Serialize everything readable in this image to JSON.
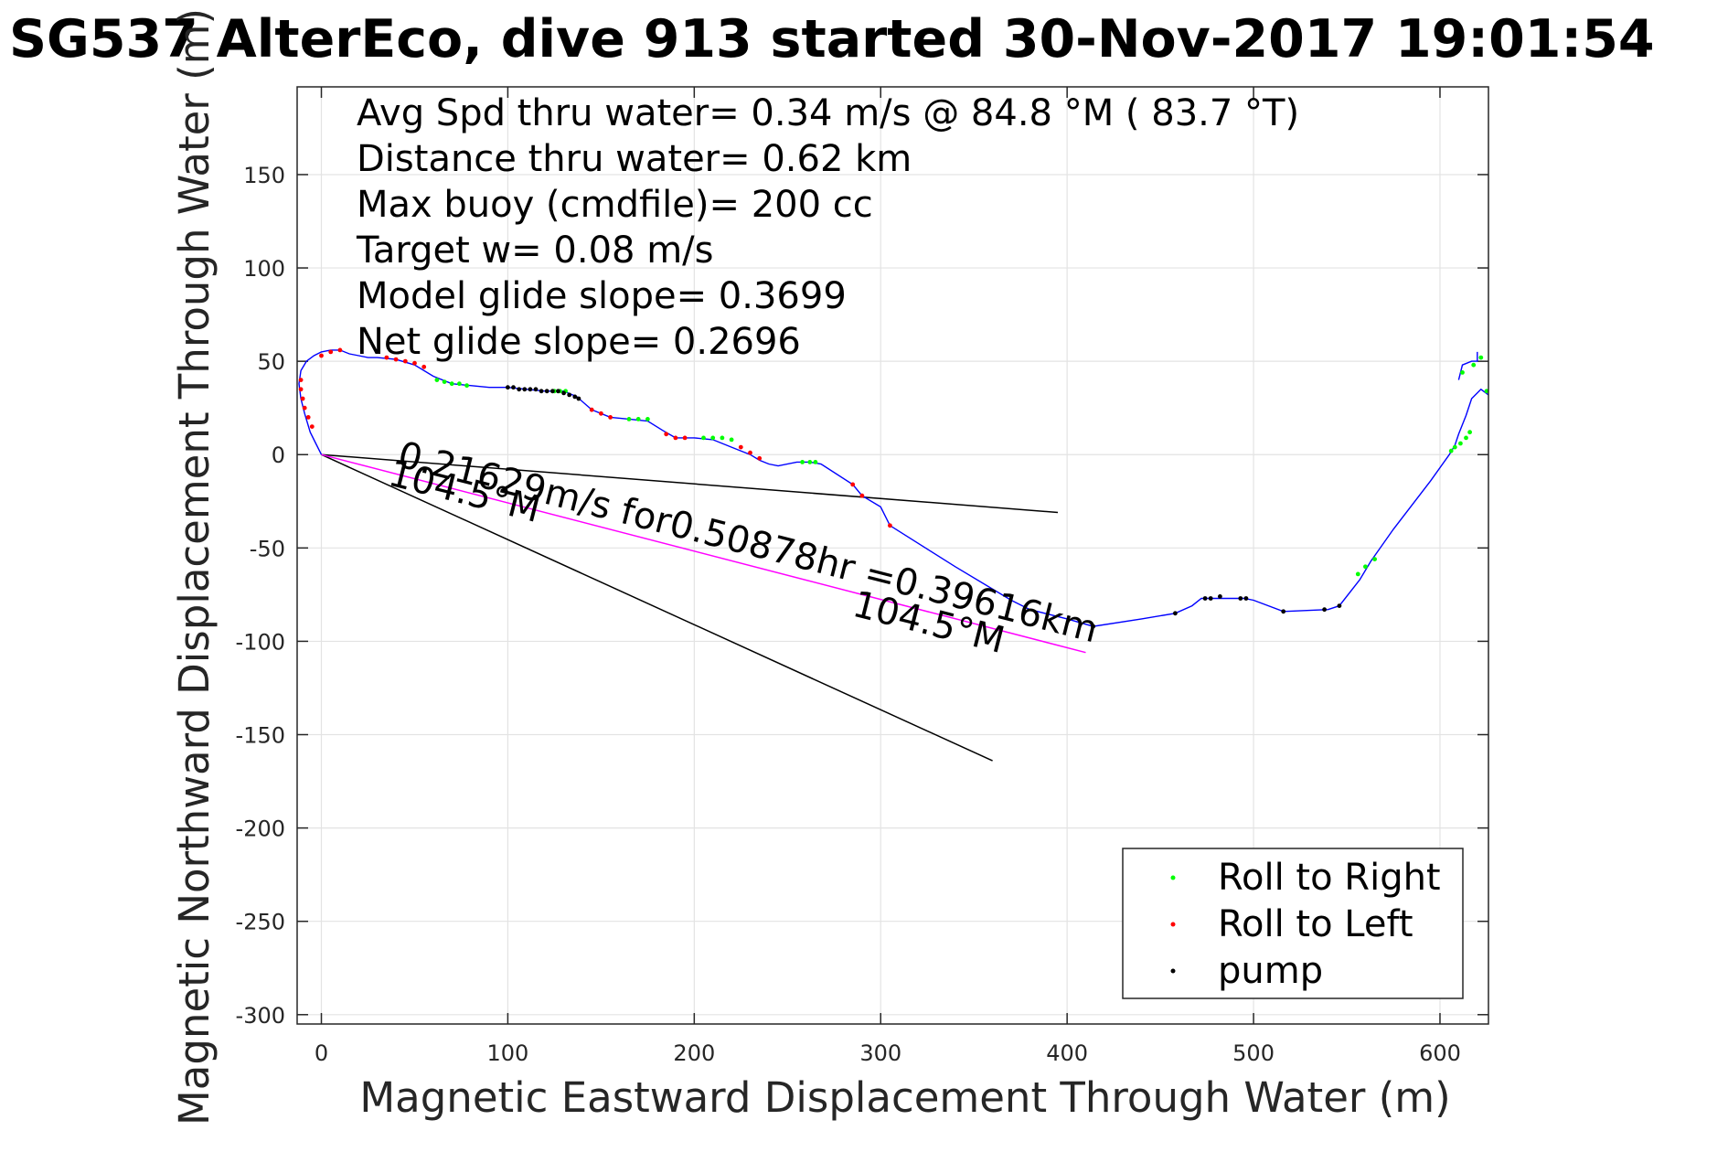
{
  "chart_data": {
    "type": "line",
    "title": "SG537 AlterEco, dive 913 started 30-Nov-2017 19:01:54",
    "xlabel": "Magnetic Eastward Displacement Through Water (m)",
    "ylabel": "Magnetic Northward Displacement Through Water (m)",
    "xlim": [
      -13,
      626
    ],
    "ylim": [
      -305,
      197
    ],
    "xticks": [
      0,
      100,
      200,
      300,
      400,
      500,
      600
    ],
    "yticks": [
      -300,
      -250,
      -200,
      -150,
      -100,
      -50,
      0,
      50,
      100,
      150
    ],
    "grid": true,
    "info_lines": [
      "Avg Spd thru water=  0.34 m/s @  84.8 °M ( 83.7 °T)",
      "Distance thru water=  0.62 km",
      "Max buoy (cmdfile)= 200 cc",
      "Target w= 0.08 m/s",
      "Model glide slope= 0.3699",
      "Net glide slope= 0.2696"
    ],
    "annotations": {
      "current_label": "0.21629m/s for0.50878hr =0.39616km",
      "heading_label_1": "104.5°M",
      "heading_label_2": "104.5°M"
    },
    "track": {
      "color": "#0000ff",
      "x": [
        0,
        -3,
        -6,
        -9,
        -11,
        -12,
        -11,
        -8,
        -4,
        0,
        5,
        10,
        15,
        20,
        25,
        30,
        40,
        50,
        60,
        70,
        80,
        90,
        100,
        110,
        120,
        130,
        137,
        145,
        155,
        165,
        175,
        183,
        190,
        200,
        210,
        220,
        230,
        235,
        240,
        245,
        255,
        262,
        268,
        285,
        290,
        300,
        305,
        340,
        370,
        380,
        400,
        414,
        440,
        458,
        467,
        472,
        476,
        482,
        495,
        500,
        516,
        540,
        546,
        557,
        563,
        575,
        595,
        605,
        608,
        610,
        614,
        617,
        622,
        626
      ],
      "y": [
        0,
        6,
        12,
        22,
        30,
        38,
        45,
        50,
        53,
        55,
        56,
        56,
        54,
        53,
        52,
        52,
        51,
        48,
        42,
        38,
        37,
        36,
        36,
        35,
        34,
        34,
        31,
        24,
        20,
        19,
        18,
        13,
        9,
        9,
        8,
        4,
        0,
        -3,
        -5,
        -6,
        -4,
        -4,
        -5,
        -16,
        -22,
        -28,
        -38,
        -60,
        -78,
        -83,
        -88,
        -92,
        -88,
        -85,
        -81,
        -77,
        -77,
        -77,
        -77,
        -78,
        -84,
        -83,
        -81,
        -67,
        -57,
        -40,
        -14,
        0,
        5,
        11,
        21,
        30,
        35,
        32
      ]
    },
    "track_segment_2": {
      "x": [
        610,
        612,
        617,
        620,
        620
      ],
      "y": [
        40,
        48,
        50,
        50,
        55
      ]
    },
    "current_line": {
      "color": "#ff00ff",
      "x": [
        0,
        410
      ],
      "y": [
        0,
        -106
      ]
    },
    "heading_line_1": {
      "color": "#000000",
      "x": [
        0,
        395
      ],
      "y": [
        0,
        -31
      ]
    },
    "heading_line_2": {
      "color": "#000000",
      "x": [
        0,
        360
      ],
      "y": [
        0,
        -164
      ]
    },
    "series": [
      {
        "name": "Roll to Right",
        "color": "#00ff00",
        "x": [
          62,
          66,
          70,
          74,
          78,
          125,
          128,
          131,
          165,
          170,
          175,
          205,
          210,
          215,
          220,
          258,
          262,
          265,
          556,
          560,
          565,
          606,
          608,
          611,
          614,
          616,
          612,
          618,
          622,
          625
        ],
        "y": [
          40,
          39,
          38,
          38,
          37,
          34,
          34,
          34,
          19,
          19,
          19,
          9,
          9,
          9,
          8,
          -4,
          -4,
          -4,
          -64,
          -60,
          -56,
          2,
          4,
          6,
          9,
          12,
          44,
          48,
          52,
          34
        ]
      },
      {
        "name": "Roll to Left",
        "color": "#ff0000",
        "x": [
          -11,
          -11,
          -10,
          -9,
          -7,
          -5,
          0,
          5,
          10,
          35,
          40,
          45,
          50,
          55,
          145,
          150,
          155,
          185,
          190,
          195,
          225,
          230,
          235,
          285,
          290,
          305
        ],
        "y": [
          40,
          35,
          30,
          25,
          20,
          15,
          53,
          55,
          56,
          52,
          51,
          50,
          49,
          47,
          24,
          22,
          20,
          11,
          9,
          9,
          4,
          1,
          -2,
          -16,
          -22,
          -38
        ]
      },
      {
        "name": "pump",
        "color": "#000000",
        "x": [
          100,
          103,
          106,
          109,
          112,
          115,
          118,
          121,
          124,
          127,
          130,
          133,
          136,
          138,
          414,
          458,
          474,
          477,
          482,
          493,
          496,
          516,
          538,
          546
        ],
        "y": [
          36,
          36,
          35,
          35,
          35,
          35,
          34,
          34,
          34,
          34,
          33,
          32,
          31,
          30,
          -92,
          -85,
          -77,
          -77,
          -76,
          -77,
          -77,
          -84,
          -83,
          -81
        ]
      }
    ],
    "legend": {
      "placement": "bottom-right",
      "entries": [
        {
          "label": "Roll to Right",
          "color": "#00ff00"
        },
        {
          "label": "Roll to Left",
          "color": "#ff0000"
        },
        {
          "label": "pump",
          "color": "#000000"
        }
      ]
    }
  }
}
